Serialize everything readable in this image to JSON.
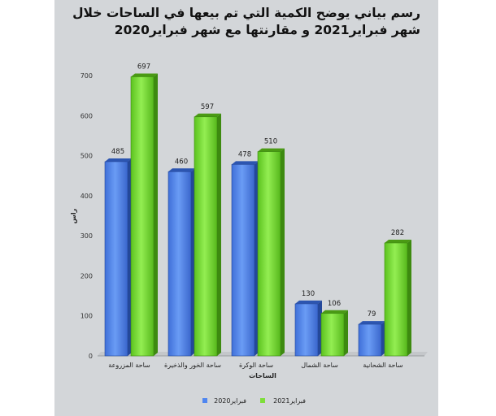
{
  "chart_data": {
    "type": "bar",
    "title": "رسم بياني يوضح الكمية التي تم بيعها في الساحات خلال شهر فبراير2021 و مقارنتها مع شهر فبراير2020",
    "xlabel": "الساحات",
    "ylabel": "راس",
    "ylim": [
      0,
      700
    ],
    "yticks": [
      0,
      100,
      200,
      300,
      400,
      500,
      600,
      700
    ],
    "categories": [
      "ساحة المزروعة",
      "ساحة الخور والذخيرة",
      "ساحة الوكرة",
      "ساحة الشمال",
      "ساحة الشحانية"
    ],
    "series": [
      {
        "name": "فبراير2020",
        "values": [
          485,
          460,
          478,
          130,
          79
        ],
        "color": "#4f86f0"
      },
      {
        "name": "فبراير2021",
        "values": [
          697,
          597,
          510,
          106,
          282
        ],
        "color": "#7dde3a"
      }
    ],
    "legend": "bottom",
    "grid": false
  }
}
